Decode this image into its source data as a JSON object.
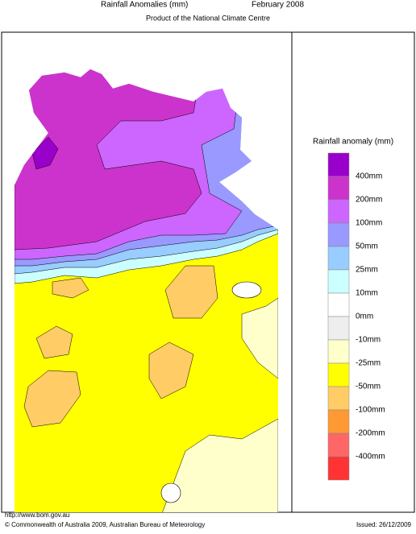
{
  "header": {
    "title": "Rainfall Anomalies (mm)",
    "period": "February 2008",
    "subtitle": "Product of the National Climate Centre"
  },
  "legend": {
    "title": "Rainfall anomaly (mm)",
    "colors": [
      "#9900cc",
      "#cc33cc",
      "#cc66ff",
      "#9999ff",
      "#99ccff",
      "#ccffff",
      "#ffffff",
      "#eeeeee",
      "#ffffcc",
      "#ffff00",
      "#ffcc66",
      "#ff9933",
      "#ff6666",
      "#ff3333"
    ],
    "labels": [
      "400mm",
      "200mm",
      "100mm",
      "50mm",
      "25mm",
      "10mm",
      "0mm",
      "-10mm",
      "-25mm",
      "-50mm",
      "-100mm",
      "-200mm",
      "-400mm"
    ]
  },
  "footer": {
    "url": "http://www.bom.gov.au",
    "copyright": "© Commonwealth of Australia 2009, Australian Bureau of Meteorology",
    "issued": "Issued: 26/12/2009"
  }
}
